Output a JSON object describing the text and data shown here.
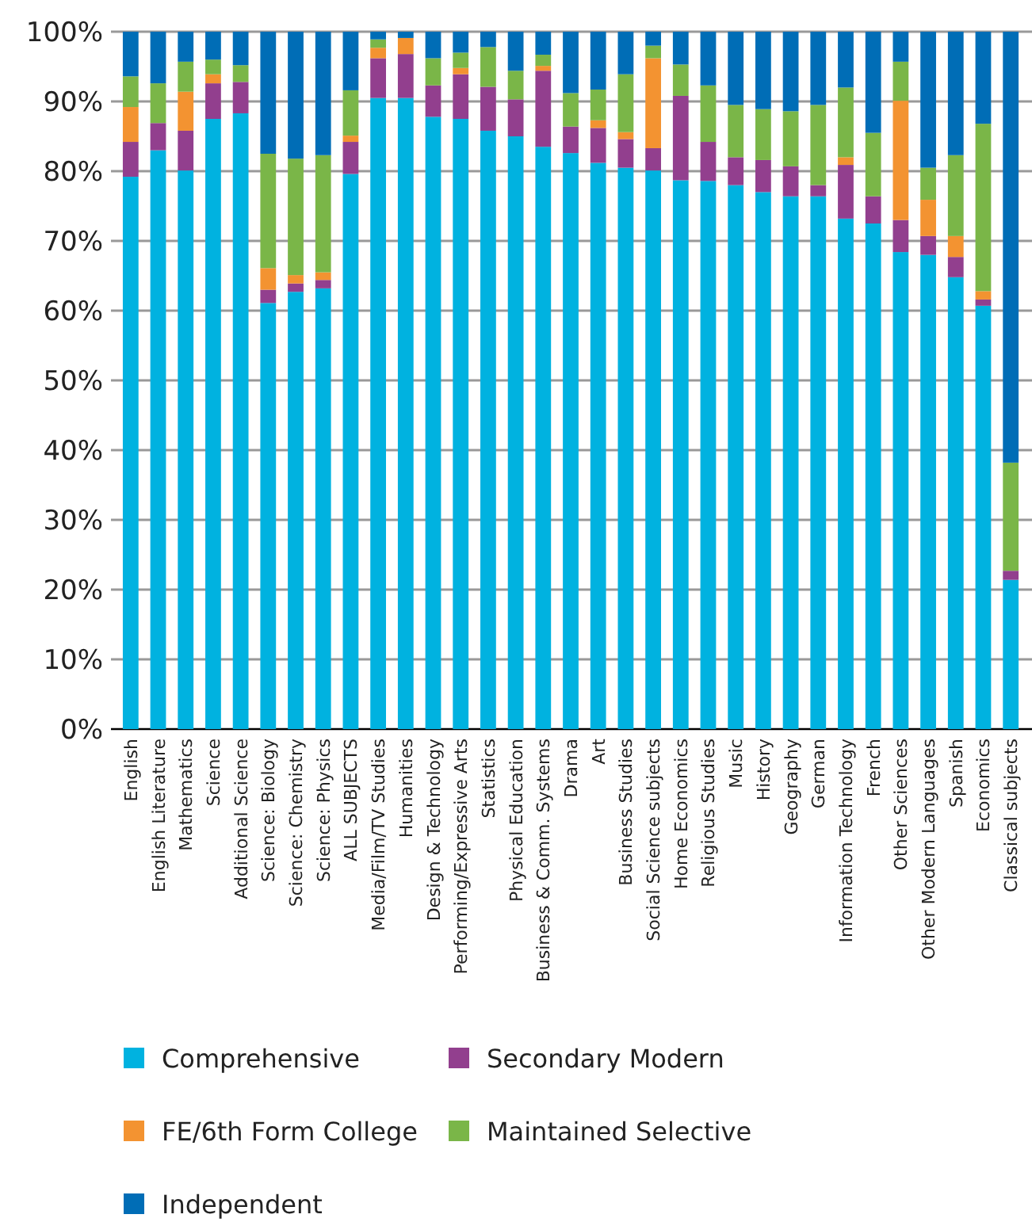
{
  "chart_data": {
    "type": "bar",
    "stacked": true,
    "categories": [
      "English",
      "English Literature",
      "Mathematics",
      "Science",
      "Additional Science",
      "Science: Biology",
      "Science: Chemistry",
      "Science: Physics",
      "ALL SUBJECTS",
      "Media/Film/TV Studies",
      "Humanities",
      "Design & Technology",
      "Performing/Expressive Arts",
      "Statistics",
      "Physical Education",
      "Business & Comm. Systems",
      "Drama",
      "Art",
      "Business Studies",
      "Social Science subjects",
      "Home Economics",
      "Religious Studies",
      "Music",
      "History",
      "Geography",
      "German",
      "Information Technology",
      "French",
      "Other Sciences",
      "Other Modern Languages",
      "Spanish",
      "Economics",
      "Classical subjects"
    ],
    "series": [
      {
        "name": "Comprehensive",
        "color": "#00b2e0",
        "values": [
          79.2,
          83.0,
          80.1,
          87.5,
          88.3,
          61.1,
          62.7,
          63.2,
          79.6,
          90.5,
          90.5,
          87.8,
          87.5,
          85.8,
          85.0,
          83.5,
          82.6,
          81.2,
          80.5,
          80.1,
          78.7,
          78.6,
          78.0,
          77.0,
          76.4,
          76.4,
          73.2,
          72.5,
          68.4,
          68.0,
          64.8,
          60.7,
          21.4
        ]
      },
      {
        "name": "Secondary Modern",
        "color": "#923f8e",
        "values": [
          5.0,
          3.9,
          5.7,
          5.1,
          4.5,
          1.9,
          1.2,
          1.2,
          4.6,
          5.7,
          6.3,
          4.5,
          6.4,
          6.3,
          5.3,
          10.9,
          3.8,
          5.0,
          4.1,
          3.2,
          12.1,
          5.6,
          4.0,
          4.6,
          4.3,
          1.6,
          7.7,
          3.9,
          4.6,
          2.7,
          2.9,
          0.9,
          1.3
        ]
      },
      {
        "name": "FE/6th Form College",
        "color": "#f39331",
        "values": [
          5.0,
          0,
          5.6,
          1.3,
          0,
          3.1,
          1.2,
          1.1,
          0.9,
          1.5,
          2.3,
          0,
          0.9,
          0,
          0,
          0.7,
          0,
          1.1,
          1.0,
          12.9,
          0,
          0,
          0,
          0,
          0,
          0,
          1.1,
          0,
          17.1,
          5.2,
          3.0,
          1.2,
          0
        ]
      },
      {
        "name": "Maintained Selective",
        "color": "#7ab648",
        "values": [
          4.4,
          5.7,
          4.3,
          2.1,
          2.4,
          16.4,
          16.7,
          16.8,
          6.5,
          1.2,
          0,
          3.9,
          2.2,
          5.7,
          4.1,
          1.6,
          4.8,
          4.4,
          8.3,
          1.8,
          4.5,
          8.1,
          7.5,
          7.3,
          7.9,
          11.5,
          10.0,
          9.1,
          5.6,
          4.6,
          11.6,
          24.0,
          15.5
        ]
      },
      {
        "name": "Independent",
        "color": "#006db6",
        "values": [
          6.4,
          7.4,
          4.3,
          4.0,
          4.8,
          17.5,
          18.2,
          17.7,
          8.4,
          1.1,
          0.9,
          3.8,
          3.0,
          2.2,
          5.6,
          3.3,
          8.8,
          8.3,
          6.1,
          2.0,
          4.7,
          7.7,
          10.5,
          11.1,
          11.4,
          10.5,
          8.0,
          14.5,
          4.3,
          19.5,
          17.7,
          13.2,
          61.8
        ]
      }
    ],
    "ylim": [
      0,
      100
    ],
    "yticks": [
      {
        "value": 0,
        "label": "0%"
      },
      {
        "value": 10,
        "label": "10%"
      },
      {
        "value": 20,
        "label": "20%"
      },
      {
        "value": 30,
        "label": "30%"
      },
      {
        "value": 40,
        "label": "40%"
      },
      {
        "value": 50,
        "label": "50%"
      },
      {
        "value": 60,
        "label": "60%"
      },
      {
        "value": 70,
        "label": "70%"
      },
      {
        "value": 80,
        "label": "80%"
      },
      {
        "value": 90,
        "label": "90%"
      },
      {
        "value": 100,
        "label": "100%"
      }
    ],
    "grid": "y",
    "legend": "bottom"
  }
}
